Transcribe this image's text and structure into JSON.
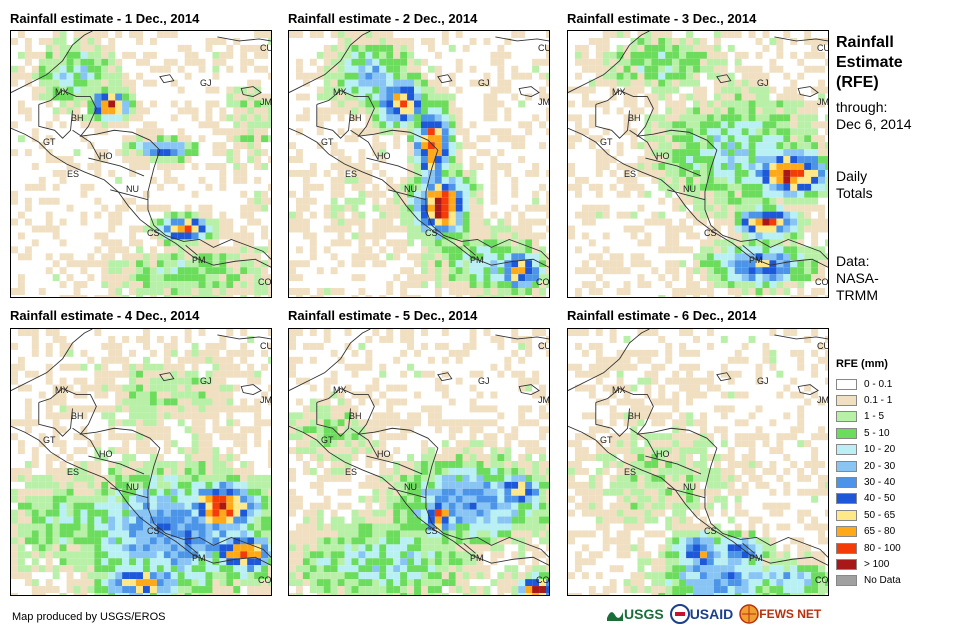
{
  "panels": [
    {
      "title": "Rainfall estimate - 1 Dec., 2014"
    },
    {
      "title": "Rainfall estimate - 2 Dec., 2014"
    },
    {
      "title": "Rainfall estimate - 3 Dec., 2014"
    },
    {
      "title": "Rainfall estimate - 4 Dec., 2014"
    },
    {
      "title": "Rainfall estimate - 5 Dec., 2014"
    },
    {
      "title": "Rainfall estimate - 6 Dec., 2014"
    }
  ],
  "country_labels": [
    "CU",
    "GJ",
    "JM",
    "MX",
    "BH",
    "GT",
    "HO",
    "ES",
    "NU",
    "CS",
    "PM",
    "CO"
  ],
  "side": {
    "title_line1": "Rainfall",
    "title_line2": "Estimate",
    "title_line3": "(RFE)",
    "through": "through:",
    "date": "Dec 6, 2014",
    "daily1": "Daily",
    "daily2": "Totals",
    "data1": "Data:",
    "data2": "NASA-",
    "data3": "TRMM"
  },
  "legend": {
    "title": "RFE (mm)",
    "items": [
      {
        "label": "0 - 0.1",
        "color": "#ffffff"
      },
      {
        "label": "0.1 - 1",
        "color": "#f0dfc0"
      },
      {
        "label": "1 - 5",
        "color": "#b8f0a8"
      },
      {
        "label": "5 - 10",
        "color": "#6cdc5c"
      },
      {
        "label": "10 - 20",
        "color": "#b8f0f4"
      },
      {
        "label": "20 - 30",
        "color": "#88c4f4"
      },
      {
        "label": "30 - 40",
        "color": "#4c94e8"
      },
      {
        "label": "40 - 50",
        "color": "#1c58d8"
      },
      {
        "label": "50 - 65",
        "color": "#ffe888"
      },
      {
        "label": "65 - 80",
        "color": "#ffa818"
      },
      {
        "label": "80 - 100",
        "color": "#f43c08"
      },
      {
        "label": "> 100",
        "color": "#a81818"
      },
      {
        "label": "No Data",
        "color": "#a0a0a0"
      }
    ]
  },
  "credit": "Map produced by USGS/EROS",
  "logos": {
    "usgs": "USGS",
    "usaid": "USAID",
    "fewsnet": "FEWS NET"
  }
}
